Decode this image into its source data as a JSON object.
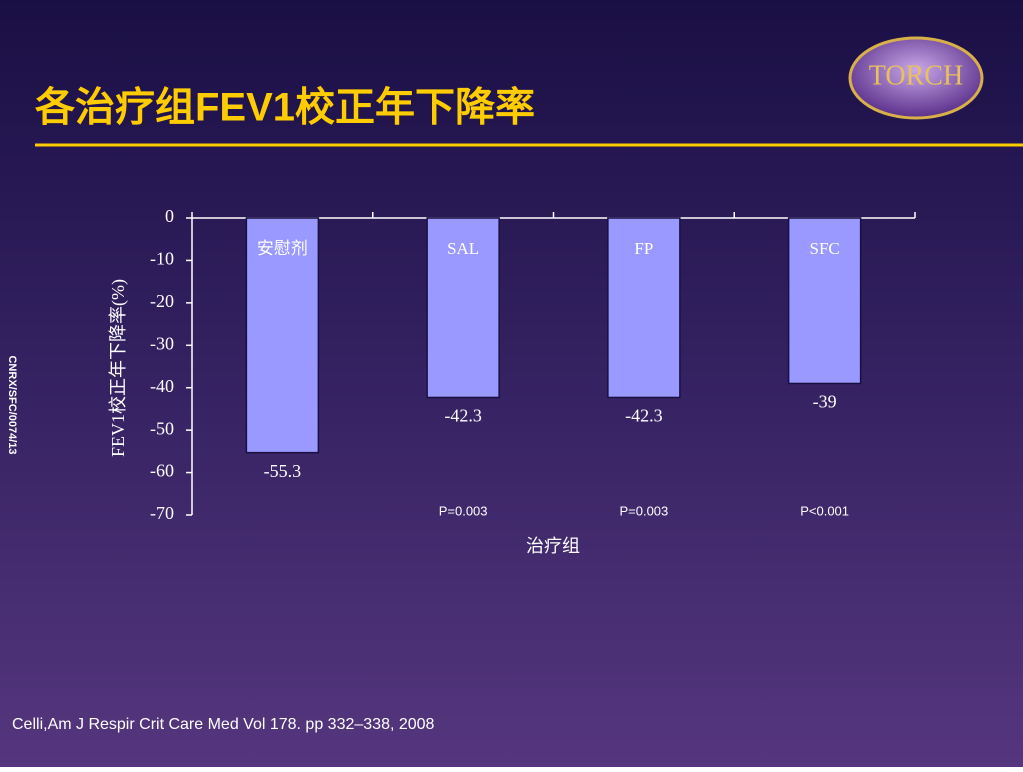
{
  "chart_data": {
    "type": "bar",
    "title": "各治疗组FEV1校正年下降率",
    "categories": [
      "安慰剂",
      "SAL",
      "FP",
      "SFC"
    ],
    "values": [
      -55.3,
      -42.3,
      -42.3,
      -39
    ],
    "p_values": [
      null,
      "P=0.003",
      "P=0.003",
      "P<0.001"
    ],
    "color": "#9999ff",
    "ylabel": "FEV1校正年下降率(%)",
    "xlabel": "治疗组",
    "ylim": [
      -70,
      0
    ],
    "yticks": [
      0,
      -10,
      -20,
      -30,
      -40,
      -50,
      -60,
      -70
    ]
  },
  "logo": "TORCH",
  "side_note": "CNRX/SFC/0074/13",
  "footer": "Celli,Am J Respir Crit Care Med Vol 178. pp 332–338, 2008"
}
